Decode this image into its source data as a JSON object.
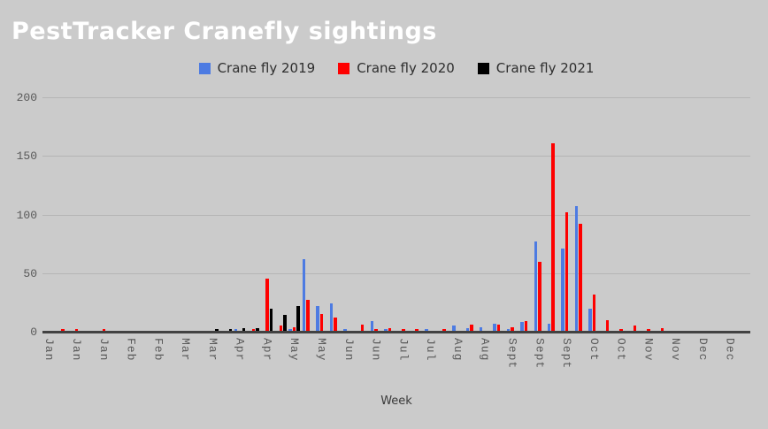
{
  "title": "PestTracker Cranefly sightings",
  "legend": {
    "position": "top",
    "items": [
      {
        "label": "Crane fly 2019",
        "color": "#4d7be2"
      },
      {
        "label": "Crane fly 2020",
        "color": "#fe0000"
      },
      {
        "label": "Crane fly 2021",
        "color": "#000000"
      }
    ]
  },
  "chart_data": {
    "type": "bar",
    "title": "PestTracker Cranefly sightings",
    "xlabel": "Week",
    "ylabel": "",
    "ylim": [
      0,
      200
    ],
    "yticks": [
      0,
      50,
      100,
      150,
      200
    ],
    "grid": true,
    "legend_position": "top",
    "x_unit": "week number 1-52, tick labels shown for every other week",
    "x_tick_labels": [
      "Jan",
      "Jan",
      "Jan",
      "Feb",
      "Feb",
      "Mar",
      "Mar",
      "Apr",
      "Apr",
      "May",
      "May",
      "Jun",
      "Jun",
      "Jul",
      "Jul",
      "Aug",
      "Aug",
      "Sept",
      "Sept",
      "Sept",
      "Oct",
      "Oct",
      "Nov",
      "Nov",
      "Dec",
      "Dec"
    ],
    "series": [
      {
        "name": "Crane fly 2019",
        "color": "#4d7be2",
        "values": [
          0,
          0,
          0,
          0,
          0,
          0,
          0,
          0,
          0,
          0,
          0,
          0,
          0,
          0,
          2,
          0,
          0,
          0,
          2,
          62,
          22,
          24,
          2,
          0,
          9,
          2,
          0,
          0,
          2,
          0,
          5,
          3,
          4,
          7,
          2,
          8,
          77,
          7,
          71,
          107,
          20,
          0,
          0,
          0,
          0,
          0,
          0,
          0,
          0,
          0,
          0,
          0
        ]
      },
      {
        "name": "Crane fly 2020",
        "color": "#fe0000",
        "values": [
          0,
          2,
          2,
          0,
          2,
          0,
          0,
          0,
          0,
          0,
          0,
          0,
          0,
          0,
          0,
          2,
          45,
          5,
          4,
          27,
          15,
          12,
          0,
          6,
          2,
          3,
          2,
          2,
          0,
          2,
          0,
          6,
          0,
          6,
          4,
          9,
          60,
          161,
          102,
          92,
          32,
          10,
          2,
          5,
          2,
          3,
          0,
          0,
          0,
          0,
          0,
          0
        ]
      },
      {
        "name": "Crane fly 2021",
        "color": "#000000",
        "values": [
          0,
          0,
          0,
          0,
          0,
          0,
          0,
          0,
          0,
          0,
          0,
          0,
          2,
          2,
          3,
          3,
          20,
          14,
          22,
          0,
          0,
          0,
          0,
          0,
          0,
          0,
          0,
          0,
          0,
          0,
          0,
          0,
          0,
          0,
          0,
          0,
          0,
          0,
          0,
          0,
          0,
          0,
          0,
          0,
          0,
          0,
          0,
          0,
          0,
          0,
          0,
          0
        ]
      }
    ]
  },
  "colors": {
    "background": "#cbcbcb",
    "gridline": "#b5b5b5",
    "axis_line": "#424242",
    "axis_label": "#595959",
    "title": "#ffffff"
  }
}
